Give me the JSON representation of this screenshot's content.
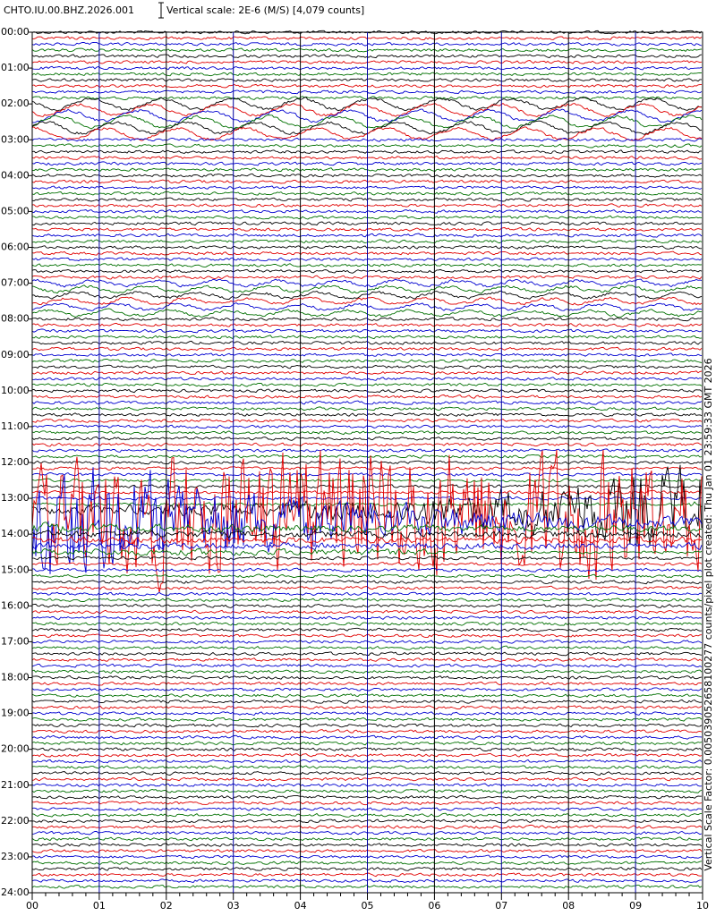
{
  "chart_data": {
    "type": "helicorder",
    "title": "CHTO.IU.00.BHZ.2026.001",
    "scale_label": "Vertical scale: 2E-6 (M/S) [4,079 counts]",
    "side_label": "Vertical Scale Factor: 0.005039052658100277 counts/pixel plot created: Thu Jan 01 23:59:33 GMT 2026",
    "xlim": [
      0,
      10
    ],
    "ylim": [
      0,
      24
    ],
    "xticks": [
      {
        "value": 0,
        "label": "00"
      },
      {
        "value": 1,
        "label": "01"
      },
      {
        "value": 2,
        "label": "02"
      },
      {
        "value": 3,
        "label": "03"
      },
      {
        "value": 4,
        "label": "04"
      },
      {
        "value": 5,
        "label": "05"
      },
      {
        "value": 6,
        "label": "06"
      },
      {
        "value": 7,
        "label": "07"
      },
      {
        "value": 8,
        "label": "08"
      },
      {
        "value": 9,
        "label": "09"
      },
      {
        "value": 10,
        "label": "10"
      }
    ],
    "yticks": [
      {
        "value": 0,
        "label": "00:00"
      },
      {
        "value": 1,
        "label": "01:00"
      },
      {
        "value": 2,
        "label": "02:00"
      },
      {
        "value": 3,
        "label": "03:00"
      },
      {
        "value": 4,
        "label": "04:00"
      },
      {
        "value": 5,
        "label": "05:00"
      },
      {
        "value": 6,
        "label": "06:00"
      },
      {
        "value": 7,
        "label": "07:00"
      },
      {
        "value": 8,
        "label": "08:00"
      },
      {
        "value": 9,
        "label": "09:00"
      },
      {
        "value": 10,
        "label": "10:00"
      },
      {
        "value": 11,
        "label": "11:00"
      },
      {
        "value": 12,
        "label": "12:00"
      },
      {
        "value": 13,
        "label": "13:00"
      },
      {
        "value": 14,
        "label": "14:00"
      },
      {
        "value": 15,
        "label": "15:00"
      },
      {
        "value": 16,
        "label": "16:00"
      },
      {
        "value": 17,
        "label": "17:00"
      },
      {
        "value": 18,
        "label": "18:00"
      },
      {
        "value": 19,
        "label": "19:00"
      },
      {
        "value": 20,
        "label": "20:00"
      },
      {
        "value": 21,
        "label": "21:00"
      },
      {
        "value": 22,
        "label": "22:00"
      },
      {
        "value": 23,
        "label": "23:00"
      },
      {
        "value": 24,
        "label": "24:00"
      }
    ],
    "trace_colors": [
      "#000000",
      "#e00000",
      "#0000d0",
      "#007000"
    ]
  }
}
